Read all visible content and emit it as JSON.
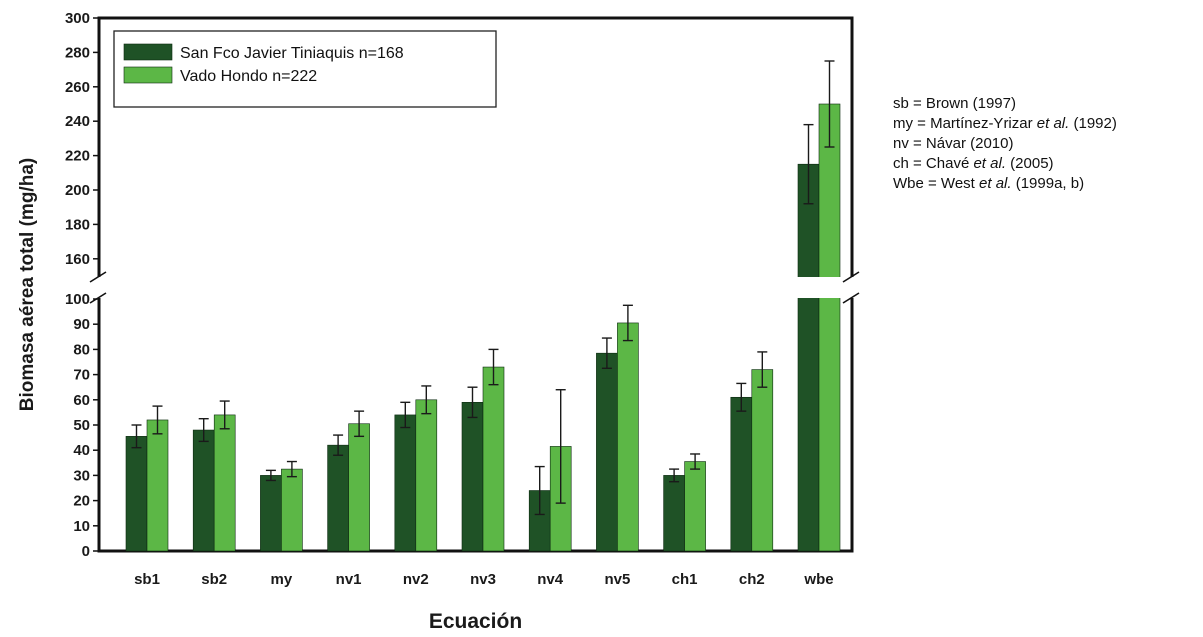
{
  "chart_data": {
    "type": "bar",
    "title": "",
    "xlabel": "Ecuación",
    "ylabel": "Biomasa aérea total (mg/ha)",
    "categories": [
      "sb1",
      "sb2",
      "my",
      "nv1",
      "nv2",
      "nv3",
      "nv4",
      "nv5",
      "ch1",
      "ch2",
      "wbe"
    ],
    "series": [
      {
        "name": "San Fco Javier Tiniaquis n=168",
        "color": "#1f5226",
        "values": [
          45.5,
          48,
          30,
          42,
          54,
          59,
          24,
          78.5,
          30,
          61,
          215
        ],
        "error": [
          4.5,
          4.5,
          2,
          4,
          5,
          6,
          9.5,
          6,
          2.5,
          5.5,
          23
        ]
      },
      {
        "name": "Vado Hondo n=222",
        "color": "#5cb746",
        "values": [
          52,
          54,
          32.5,
          50.5,
          60,
          73,
          41.5,
          90.5,
          35.5,
          72,
          250
        ],
        "error": [
          5.5,
          5.5,
          3,
          5,
          5.5,
          7,
          22.5,
          7,
          3,
          7,
          25
        ]
      }
    ],
    "yaxis": {
      "broken": true,
      "lower_range": [
        0,
        100
      ],
      "upper_range": [
        150,
        300
      ],
      "lower_ticks": [
        0,
        10,
        20,
        30,
        40,
        50,
        60,
        70,
        80,
        90,
        100
      ],
      "upper_ticks": [
        160,
        180,
        200,
        220,
        240,
        260,
        280,
        300
      ]
    },
    "legend_position": "top-left",
    "grid": false
  },
  "notes": [
    {
      "pre": "sb = Brown (1997)",
      "em": "",
      "post": ""
    },
    {
      "pre": "my = Martínez-Yrizar ",
      "em": "et al.",
      "post": " (1992)"
    },
    {
      "pre": "nv = Návar (2010)",
      "em": "",
      "post": ""
    },
    {
      "pre": "ch = Chavé ",
      "em": "et al.",
      "post": " (2005)"
    },
    {
      "pre": "Wbe = West ",
      "em": "et al.",
      "post": " (1999a, b)"
    }
  ]
}
